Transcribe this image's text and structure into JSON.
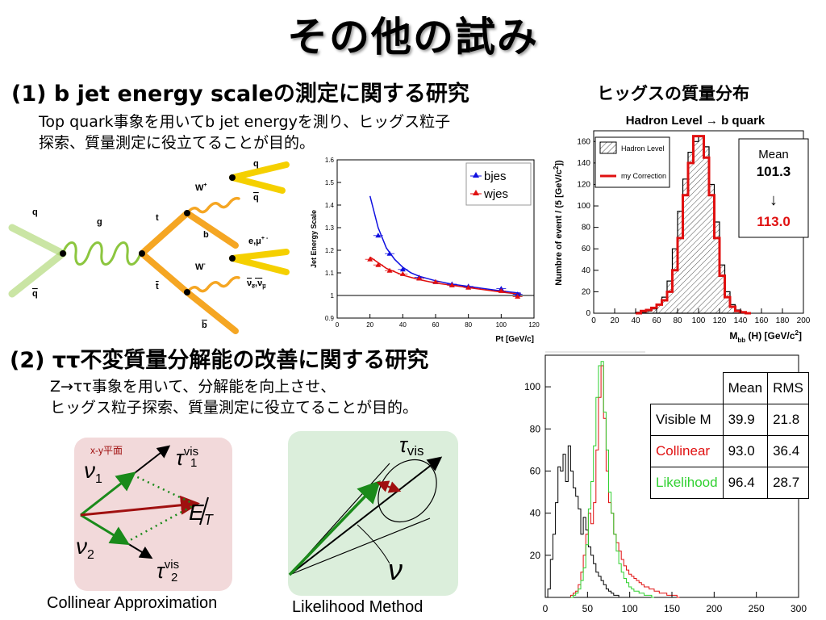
{
  "slide": {
    "title": "その他の試み",
    "section1": {
      "heading": "(1) b jet energy scaleの測定に関する研究",
      "desc": [
        "Top quark事象を用いてb jet energyを測り、ヒッグス粒子",
        "探索、質量測定に役立てることが目的。"
      ]
    },
    "section2": {
      "heading": "(2) ττ不変質量分解能の改善に関する研究",
      "desc": [
        "Z→ττ事象を用いて、分解能を向上させ、",
        "ヒッグス粒子探索、質量測定に役立てることが目的。"
      ]
    }
  },
  "feynman": {
    "labels": {
      "q": "q",
      "qbar": "q",
      "g": "g",
      "t": "t",
      "tbar": "t",
      "w1": "W",
      "w1sup": "+",
      "w2": "W",
      "w2sup": "-",
      "b": "b",
      "bbar": "b",
      "q2": "q",
      "q2bar": "q",
      "lep": "e,μ",
      "lepsup": "+  -",
      "nu": "ν",
      "nusub": "e",
      "nu2": "ν",
      "nu2sub": "μ"
    }
  },
  "collinear": {
    "caption": "Collinear Approximation",
    "plane_label": "x-y平面",
    "labels": {
      "nu1": "ν",
      "nu1sub": "1",
      "nu2": "ν",
      "nu2sub": "2",
      "tau": "τ",
      "vis": "vis",
      "t1sub": "1",
      "t2sub": "2",
      "E": "E",
      "T": "T"
    }
  },
  "likelihood": {
    "caption": "Likelihood Method",
    "labels": {
      "tau": "τ",
      "vis": "vis",
      "nu": "ν"
    }
  },
  "chart_data": [
    {
      "type": "scatter",
      "ylabel": "Jet Energy Scale",
      "xlabel": "Pt [GeV/c]",
      "xlim": [
        0,
        120
      ],
      "ylim": [
        0.9,
        1.6
      ],
      "xticks": [
        "0",
        "20",
        "40",
        "60",
        "80",
        "100",
        "120"
      ],
      "yticks": [
        "0.9",
        "1",
        "1.1",
        "1.2",
        "1.3",
        "1.4",
        "1.5",
        "1.6"
      ],
      "legend_position": "top-right",
      "series": [
        {
          "name": "bjes",
          "color": "#1010e0",
          "x": [
            25,
            32,
            40,
            50,
            60,
            70,
            80,
            100,
            110
          ],
          "y": [
            1.265,
            1.185,
            1.115,
            1.08,
            1.06,
            1.05,
            1.04,
            1.03,
            1.005
          ],
          "curve_x": [
            20,
            25,
            30,
            35,
            40,
            45,
            50,
            60,
            70,
            80,
            90,
            100,
            112
          ],
          "curve_y": [
            1.44,
            1.3,
            1.21,
            1.16,
            1.125,
            1.1,
            1.085,
            1.065,
            1.05,
            1.04,
            1.03,
            1.02,
            1.01
          ]
        },
        {
          "name": "wjes",
          "color": "#e01010",
          "x": [
            20,
            25,
            32,
            40,
            50,
            60,
            70,
            80,
            100,
            110
          ],
          "y": [
            1.16,
            1.135,
            1.11,
            1.095,
            1.075,
            1.06,
            1.045,
            1.035,
            1.02,
            0.995
          ],
          "curve_x": [
            20,
            30,
            40,
            50,
            60,
            70,
            80,
            90,
            100,
            112
          ],
          "curve_y": [
            1.17,
            1.12,
            1.09,
            1.07,
            1.055,
            1.045,
            1.035,
            1.025,
            1.015,
            1.005
          ]
        }
      ]
    },
    {
      "type": "histogram",
      "title": "ヒッグスの質量分布",
      "subtitle": "Hadron Level → b quark",
      "ylabel": "Numbre of event / (5 [GeV/c",
      "ylabel_sup": "2",
      "ylabel_end": "])",
      "xlabel": "M",
      "xlabel_sub": "bb",
      "xlabel_end": " (H) [GeV/c",
      "xlabel_sup": "2",
      "xlabel_close": "]",
      "xlim": [
        0,
        200
      ],
      "ylim": [
        0,
        170
      ],
      "xticks": [
        "0",
        "20",
        "40",
        "60",
        "80",
        "100",
        "120",
        "140",
        "160",
        "180",
        "200"
      ],
      "yticks": [
        "0",
        "20",
        "40",
        "60",
        "80",
        "100",
        "120",
        "140",
        "160"
      ],
      "bin_width": 5,
      "series": [
        {
          "name": "Hadron Level",
          "color": "#000000",
          "fill": "hatched",
          "x_start": 40,
          "values": [
            1,
            1,
            2,
            4,
            8,
            15,
            30,
            60,
            95,
            125,
            150,
            160,
            165,
            155,
            120,
            85,
            45,
            20,
            8,
            3,
            1,
            0
          ]
        },
        {
          "name": "my Correction",
          "color": "#e01010",
          "x_start": 40,
          "values": [
            0,
            2,
            3,
            5,
            8,
            12,
            20,
            40,
            70,
            110,
            140,
            165,
            165,
            145,
            110,
            70,
            35,
            15,
            6,
            2,
            1,
            0
          ]
        }
      ],
      "mean_box": {
        "label": "Mean",
        "before": "101.3",
        "arrow": "↓",
        "after": "113.0"
      }
    },
    {
      "type": "histogram",
      "xlim": [
        0,
        300
      ],
      "ylim": [
        0,
        115
      ],
      "xticks": [
        "0",
        "50",
        "100",
        "150",
        "200",
        "250",
        "300"
      ],
      "yticks": [
        "20",
        "40",
        "60",
        "80",
        "100"
      ],
      "bin_width": 3,
      "series": [
        {
          "name": "Visible M",
          "color": "#000000",
          "x_start": 0,
          "values": [
            0,
            4,
            18,
            30,
            45,
            62,
            60,
            68,
            55,
            72,
            60,
            52,
            48,
            42,
            30,
            38,
            32,
            24,
            20,
            16,
            12,
            10,
            8,
            6,
            4,
            3,
            2,
            1,
            1,
            0
          ]
        },
        {
          "name": "Collinear",
          "color": "#e01010",
          "x_start": 30,
          "values": [
            1,
            2,
            3,
            6,
            12,
            20,
            30,
            40,
            35,
            45,
            70,
            95,
            110,
            85,
            60,
            45,
            40,
            30,
            26,
            22,
            18,
            15,
            13,
            11,
            10,
            9,
            8,
            7,
            6,
            5,
            5,
            4,
            4,
            3,
            3,
            2,
            2,
            2,
            1,
            1,
            1,
            1,
            0
          ]
        },
        {
          "name": "Likelihood",
          "color": "#30d030",
          "x_start": 30,
          "values": [
            0,
            1,
            2,
            4,
            8,
            14,
            25,
            42,
            55,
            72,
            95,
            110,
            112,
            88,
            70,
            50,
            40,
            30,
            22,
            16,
            12,
            9,
            7,
            5,
            4,
            3,
            3,
            2,
            2,
            1,
            1,
            1,
            0
          ]
        }
      ],
      "table": {
        "headers": [
          "",
          "Mean",
          "RMS"
        ],
        "rows": [
          {
            "name": "Visible M",
            "mean": "39.9",
            "rms": "21.8",
            "color": "#000000"
          },
          {
            "name": "Collinear",
            "mean": "93.0",
            "rms": "36.4",
            "color": "#e01010"
          },
          {
            "name": "Likelihood",
            "mean": "96.4",
            "rms": "28.7",
            "color": "#30d030"
          }
        ]
      }
    }
  ]
}
